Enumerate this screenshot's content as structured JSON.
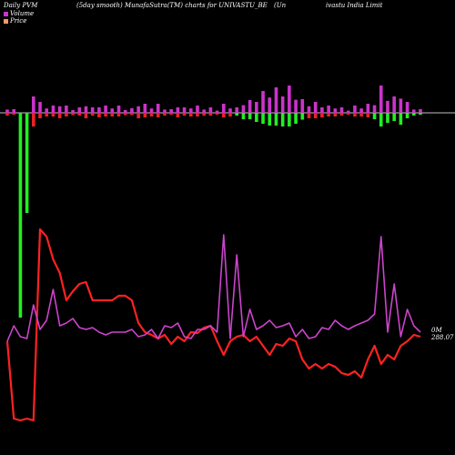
{
  "header": {
    "left": "Daily PVM",
    "mid": "(5day smooth) MunafaSutra(TM) charts for UNIVASTU_BE",
    "right_a": "(Un",
    "right_b": "ivastu   India  Limit"
  },
  "legend": {
    "volume_label": "Volume",
    "price_label": "Price",
    "volume_color": "#cc33cc",
    "price_color": "#ff9966"
  },
  "end_labels": {
    "volume_end": "0M",
    "price_end": "288.07"
  },
  "colors": {
    "background": "#000000",
    "price_line": "#ff2222",
    "volume_line": "#cc44cc",
    "bar_up": "#cc33cc",
    "bar_down": "#ee2222",
    "bar_big_down": "#22ee22",
    "baseline": "#ffffff"
  },
  "chart_data": {
    "type": "line",
    "title": "Daily PVM (5day smooth) MunafaSutra(TM) charts for UNIVASTU_BE",
    "n_points": 64,
    "series": [
      {
        "name": "Price",
        "values": [
          375,
          460,
          462,
          460,
          462,
          252,
          260,
          285,
          300,
          330,
          320,
          312,
          310,
          330,
          330,
          330,
          330,
          325,
          325,
          330,
          355,
          365,
          368,
          372,
          368,
          378,
          370,
          375,
          365,
          366,
          360,
          358,
          375,
          390,
          375,
          370,
          368,
          375,
          370,
          380,
          390,
          378,
          380,
          372,
          375,
          395,
          405,
          400,
          405,
          400,
          403,
          410,
          412,
          408,
          415,
          395,
          380,
          400,
          390,
          395,
          380,
          375,
          368,
          370
        ]
      },
      {
        "name": "Volume",
        "values": [
          375,
          358,
          370,
          372,
          335,
          362,
          352,
          318,
          358,
          355,
          350,
          360,
          362,
          360,
          365,
          368,
          365,
          365,
          365,
          362,
          370,
          368,
          362,
          372,
          358,
          360,
          355,
          370,
          372,
          362,
          362,
          358,
          365,
          258,
          372,
          280,
          370,
          340,
          362,
          358,
          352,
          360,
          358,
          355,
          370,
          362,
          372,
          370,
          360,
          362,
          352,
          358,
          362,
          358,
          355,
          352,
          345,
          260,
          365,
          312,
          370,
          340,
          358,
          365
        ]
      },
      {
        "name": "Volume bars",
        "values": [
          -6,
          -4,
          -225,
          -110,
          -40,
          12,
          8,
          -8,
          12,
          8,
          -5,
          -6,
          -12,
          -6,
          -10,
          -8,
          -8,
          -8,
          -5,
          -5,
          -12,
          -10,
          -8,
          -10,
          -6,
          -4,
          -10,
          -6,
          -8,
          -8,
          -6,
          -6,
          -4,
          -10,
          -8,
          -6,
          -14,
          -14,
          -20,
          -24,
          -28,
          -28,
          -30,
          -30,
          -24,
          -15,
          -12,
          -12,
          -10,
          -8,
          -8,
          -6,
          -4,
          -8,
          -8,
          -10,
          -14,
          -30,
          -22,
          -18,
          -26,
          -12,
          -6,
          -4
        ]
      }
    ],
    "ylabel": "",
    "xlabel": ""
  }
}
